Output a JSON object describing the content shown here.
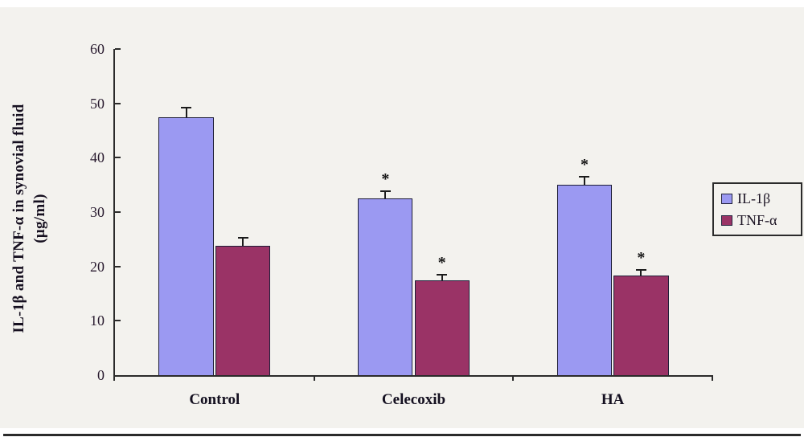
{
  "figure": {
    "background_color": "#f3f2ee",
    "frame_rule_color": "#2b2b2b"
  },
  "chart_data": {
    "type": "bar",
    "title": "",
    "ylabel_line1": "IL-1β and TNF-α in synovial fluid",
    "ylabel_line2": "(μg/ml)",
    "xlabel": "",
    "categories": [
      "Control",
      "Celecoxib",
      "HA"
    ],
    "series": [
      {
        "name": "IL-1β",
        "color": "#9b99f2",
        "values": [
          47.5,
          32.5,
          35.0
        ],
        "errors": [
          1.7,
          1.4,
          1.5
        ],
        "significant": [
          false,
          true,
          true
        ]
      },
      {
        "name": "TNF-α",
        "color": "#9a3366",
        "values": [
          23.8,
          17.5,
          18.3
        ],
        "errors": [
          1.4,
          1.0,
          1.0
        ],
        "significant": [
          false,
          true,
          true
        ]
      }
    ],
    "ylim": [
      0,
      60
    ],
    "yticks": [
      0,
      10,
      20,
      30,
      40,
      50,
      60
    ],
    "grid": false,
    "legend_position": "right",
    "significance_marker": "*",
    "axis_color": "#2b2b2b",
    "bar_border_color": "#1e1e38",
    "error_bar_color": "#1c1c1c"
  }
}
